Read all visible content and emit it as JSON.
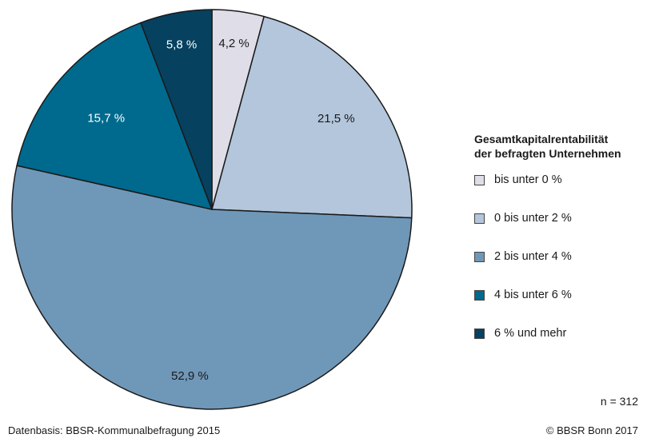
{
  "chart_data": {
    "type": "pie",
    "categories": [
      "bis unter 0 %",
      "0 bis unter 2 %",
      "2 bis unter 4 %",
      "4 bis unter 6 %",
      "6 % und mehr"
    ],
    "values": [
      4.2,
      21.5,
      52.9,
      15.7,
      5.8
    ],
    "value_labels": [
      "4,2 %",
      "21,5 %",
      "52,9 %",
      "15,7 %",
      "5,8 %"
    ],
    "colors": [
      "#dedde8",
      "#b3c6db",
      "#6f97b8",
      "#006a8e",
      "#06415f"
    ],
    "label_colors": [
      "#1a1a1a",
      "#1a1a1a",
      "#1a1a1a",
      "#ffffff",
      "#ffffff"
    ],
    "legend_title": [
      "Gesamtkapitalrentabilität",
      "der befragten Unternehmen"
    ],
    "legend_placement": "right",
    "start": "top",
    "direction": "clockwise"
  },
  "sample_size": "n = 312",
  "source": "Datenbasis: BBSR-Kommunalbefragung 2015",
  "copyright": "© BBSR Bonn 2017"
}
